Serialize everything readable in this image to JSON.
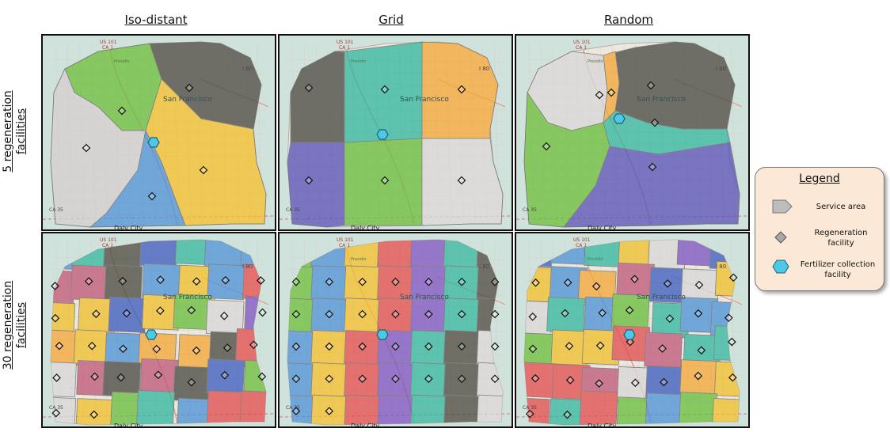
{
  "columns": [
    "Iso-distant",
    "Grid",
    "Random"
  ],
  "rows": [
    "5 regeneration facilities",
    "30 regeneration facilities"
  ],
  "map_labels": {
    "city": "San Francisco",
    "south": "Daly City",
    "us101": "US 101",
    "ca1": "CA 1",
    "i80": "I 80",
    "presidio": "Presidio",
    "ca35": "CA 35"
  },
  "legend": {
    "title": "Legend",
    "service_area": "Service area",
    "regeneration_facility": "Regeneration facility",
    "fertilizer_facility": "Fertilizer collection facility"
  },
  "colors": {
    "panel_border": "#111111",
    "legend_bg": "#fbe8d6",
    "regeneration_marker": "#888888",
    "fertilizer_marker": "#4cc9e6",
    "service_area": "#bdbdbd"
  },
  "icons": [
    "service-area-icon",
    "regeneration-facility-icon",
    "fertilizer-facility-icon"
  ]
}
